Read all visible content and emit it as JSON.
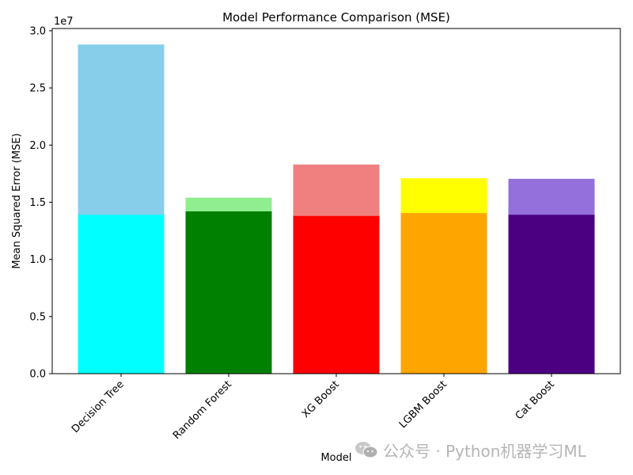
{
  "chart_data": {
    "type": "bar",
    "title": "Model Performance Comparison (MSE)",
    "xlabel": "Model",
    "ylabel": "Mean Squared Error (MSE)",
    "y_offset_label": "1e7",
    "categories": [
      "Decision Tree",
      "Random Forest",
      "XG Boost",
      "LGBM Boost",
      "Cat Boost"
    ],
    "series": [
      {
        "values": [
          13900000,
          14200000,
          13800000,
          14050000,
          13900000
        ],
        "colors": [
          "#00ffff",
          "#008000",
          "#ff0000",
          "#ffa500",
          "#4b0082"
        ]
      },
      {
        "values": [
          28800000,
          15400000,
          18300000,
          17100000,
          17050000
        ],
        "colors": [
          "#87ceeb",
          "#90ee90",
          "#f08080",
          "#ffff00",
          "#9370db"
        ]
      }
    ],
    "yticks": [
      "0.0",
      "0.5",
      "1.0",
      "1.5",
      "2.0",
      "2.5",
      "3.0"
    ],
    "ytick_values": [
      0,
      5000000,
      10000000,
      15000000,
      20000000,
      25000000,
      30000000
    ],
    "ylim": [
      0,
      30200000
    ],
    "grid": false
  },
  "watermark": {
    "text": "公众号 · Python机器学习ML",
    "icon": "wechat-icon"
  }
}
